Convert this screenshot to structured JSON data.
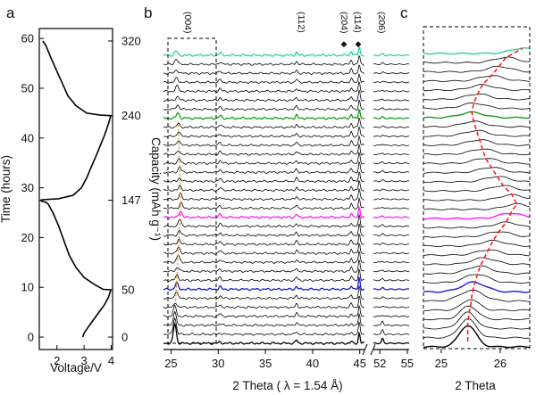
{
  "figure": {
    "panel_letters": [
      "a",
      "b",
      "c"
    ]
  },
  "chart_data": [
    {
      "panel": "a",
      "type": "line",
      "title": "",
      "xlabel": "Voltage/V",
      "ylabel": "Time (hours)",
      "ylabel_right": "Capacity (mAh g⁻¹)",
      "xlim": [
        1.35,
        4.05
      ],
      "ylim": [
        -2.5,
        62
      ],
      "x_ticks": [
        2,
        3,
        4
      ],
      "y_ticks": [
        0,
        10,
        20,
        30,
        40,
        50,
        60
      ],
      "right_ticks": [
        {
          "time": 0,
          "label": "0"
        },
        {
          "time": 9.5,
          "label": "50"
        },
        {
          "time": 27.5,
          "label": "147"
        },
        {
          "time": 44.5,
          "label": "240"
        },
        {
          "time": 59.5,
          "label": "320"
        }
      ],
      "series": [
        {
          "color": "#000000",
          "points": [
            [
              2.95,
              0
            ],
            [
              3.0,
              0.8
            ],
            [
              3.15,
              2.0
            ],
            [
              3.35,
              3.5
            ],
            [
              3.55,
              5.0
            ],
            [
              3.75,
              6.5
            ],
            [
              3.9,
              8.0
            ],
            [
              3.97,
              9.2
            ],
            [
              3.98,
              9.5
            ],
            [
              3.7,
              9.6
            ],
            [
              3.4,
              10.5
            ],
            [
              3.0,
              12.0
            ],
            [
              2.7,
              14.0
            ],
            [
              2.45,
              16.5
            ],
            [
              2.25,
              19.5
            ],
            [
              2.05,
              22.5
            ],
            [
              1.85,
              25.0
            ],
            [
              1.68,
              26.7
            ],
            [
              1.6,
              27.1
            ],
            [
              1.45,
              27.3
            ],
            [
              1.4,
              27.5
            ],
            [
              1.45,
              27.6
            ],
            [
              2.05,
              27.8
            ],
            [
              2.6,
              28.5
            ],
            [
              2.9,
              30.0
            ],
            [
              3.1,
              32.0
            ],
            [
              3.25,
              34.0
            ],
            [
              3.45,
              36.5
            ],
            [
              3.6,
              38.5
            ],
            [
              3.75,
              40.5
            ],
            [
              3.88,
              42.5
            ],
            [
              3.96,
              44.0
            ],
            [
              3.98,
              44.5
            ],
            [
              3.6,
              44.6
            ],
            [
              3.1,
              45.0
            ],
            [
              2.7,
              46.5
            ],
            [
              2.4,
              48.5
            ],
            [
              2.2,
              51.0
            ],
            [
              1.95,
              54.0
            ],
            [
              1.75,
              56.5
            ],
            [
              1.6,
              58.5
            ],
            [
              1.48,
              59.5
            ]
          ]
        }
      ]
    },
    {
      "panel": "b",
      "type": "line",
      "title": "",
      "xlabel": "2 Theta ( λ = 1.54 Å)",
      "ylabel": "",
      "x_ticks": [
        "25",
        "30",
        "35",
        "40",
        "45",
        "52",
        "55"
      ],
      "axis_break_between": [
        "45",
        "52"
      ],
      "peak_labels": [
        "(004)",
        "(112)",
        "(204)",
        "(114)",
        "(206)"
      ],
      "marked_peaks": [
        "(204)",
        "(114)"
      ],
      "marker_symbol": "◆",
      "n_patterns": 33,
      "baseline_color": "#000000",
      "highlighted_patterns": [
        {
          "index": 0,
          "color": "#000000"
        },
        {
          "index": 6,
          "color": "#1a1adb"
        },
        {
          "index": 14,
          "color": "#ff1aff"
        },
        {
          "index": 25,
          "color": "#1a9a1a"
        },
        {
          "index": 32,
          "color": "#2ad39a"
        }
      ],
      "peaks_2theta": [
        {
          "label": "(004)",
          "x": 25.4
        },
        {
          "label": "(112)",
          "x": 38.3
        },
        {
          "label": "(204)",
          "x": 44.1
        },
        {
          "label": "(114)",
          "x": 44.9
        },
        {
          "label": "(206)",
          "x": 52.3
        }
      ],
      "dashed_box": "(004)"
    },
    {
      "panel": "c",
      "type": "line",
      "title": "",
      "xlabel": "2 Theta",
      "ylabel": "",
      "x_ticks": [
        "25",
        "26"
      ],
      "xlim": [
        24.7,
        26.5
      ],
      "n_patterns": 33,
      "peak_center_trace_2theta": [
        25.45,
        25.45,
        25.45,
        25.47,
        25.5,
        25.52,
        25.55,
        25.6,
        25.65,
        25.72,
        25.8,
        25.88,
        25.98,
        26.1,
        26.18,
        26.28,
        26.2,
        26.05,
        25.95,
        25.85,
        25.75,
        25.7,
        25.65,
        25.6,
        25.55,
        25.52,
        25.55,
        25.62,
        25.7,
        25.85,
        25.98,
        26.1,
        26.38
      ],
      "trace_color": "#ff1a1a",
      "trace_style": "dashed"
    }
  ]
}
